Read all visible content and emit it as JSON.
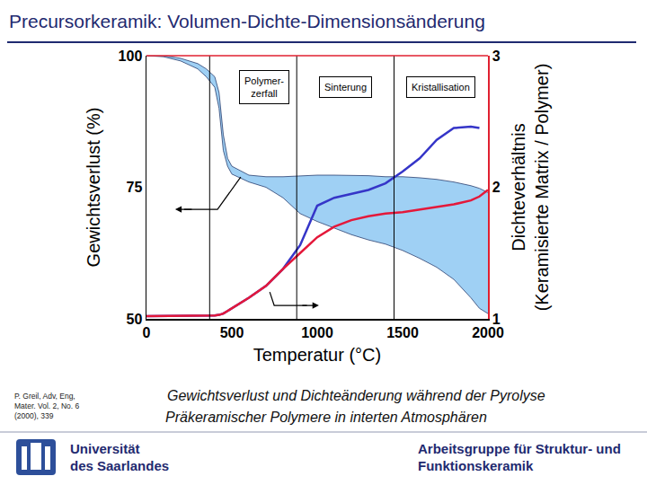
{
  "header": {
    "title": "Precursorkeramik: Volumen-Dichte-Dimensionsänderung"
  },
  "chart_data": {
    "type": "line",
    "x_label": "Temperatur (°C)",
    "y_label": "Gewichtsverlust (%)",
    "y2_label": "Dichteverhältnis\n(Keramisierte Matrix / Polymer)",
    "x": [
      0,
      100,
      200,
      300,
      350,
      400,
      425,
      450,
      475,
      500,
      600,
      700,
      800,
      900,
      1000,
      1100,
      1200,
      1300,
      1400,
      1500,
      1600,
      1700,
      1800,
      1900,
      1950,
      2000
    ],
    "xlim": [
      0,
      2000
    ],
    "xticks": [
      0,
      500,
      1000,
      1500,
      2000
    ],
    "ylim": [
      50,
      100
    ],
    "yticks": [
      50,
      75,
      100
    ],
    "y2lim": [
      1,
      3
    ],
    "y2ticks": [
      1,
      2,
      3
    ],
    "grid": false,
    "series": [
      {
        "type": "band",
        "color": "#9fd0f4",
        "upper": [
          100,
          100,
          99.5,
          98.5,
          97.5,
          96,
          93,
          85,
          80.5,
          79,
          77.3,
          77,
          77,
          77.2,
          77.3,
          77.3,
          77.3,
          77.2,
          77,
          77,
          76.8,
          76.5,
          76,
          75.3,
          74.8,
          74
        ],
        "lower": [
          100,
          99.8,
          99,
          97.5,
          96,
          94,
          90,
          82,
          79,
          77.5,
          76,
          75,
          73,
          70,
          68.5,
          67.2,
          66,
          65,
          64.2,
          63,
          61.5,
          59.8,
          57.5,
          54,
          52,
          51
        ]
      },
      {
        "type": "line",
        "axis": "y2",
        "color": "#3535c8",
        "values": [
          1.02,
          1.02,
          1.02,
          1.02,
          1.02,
          1.025,
          1.03,
          1.04,
          1.06,
          1.08,
          1.16,
          1.25,
          1.38,
          1.56,
          1.86,
          1.92,
          1.95,
          1.98,
          2.03,
          2.12,
          2.22,
          2.36,
          2.45,
          2.46,
          2.45,
          null
        ]
      },
      {
        "type": "line",
        "axis": "y2",
        "color": "#e4183a",
        "values": [
          1.02,
          1.02,
          1.02,
          1.02,
          1.02,
          1.025,
          1.03,
          1.04,
          1.06,
          1.08,
          1.16,
          1.25,
          1.38,
          1.5,
          1.62,
          1.7,
          1.75,
          1.78,
          1.8,
          1.81,
          1.83,
          1.85,
          1.87,
          1.9,
          1.93,
          1.98
        ]
      }
    ],
    "phase_boundaries": [
      370,
      880,
      1450
    ],
    "phases": [
      "Polymer-\nzerfall",
      "Sinterung",
      "Kristallisation"
    ]
  },
  "reference": "P. Greil, Adv, Eng,\nMater. Vol. 2, No. 6\n(2000), 339",
  "caption": [
    "Gewichtsverlust und Dichteänderung während der Pyrolyse",
    "Präkeramischer Polymere in interten Atmosphären"
  ],
  "footer": {
    "left": "Universität\ndes Saarlandes",
    "right": "Arbeitsgruppe für Struktur- und\nFunktionskeramik"
  }
}
